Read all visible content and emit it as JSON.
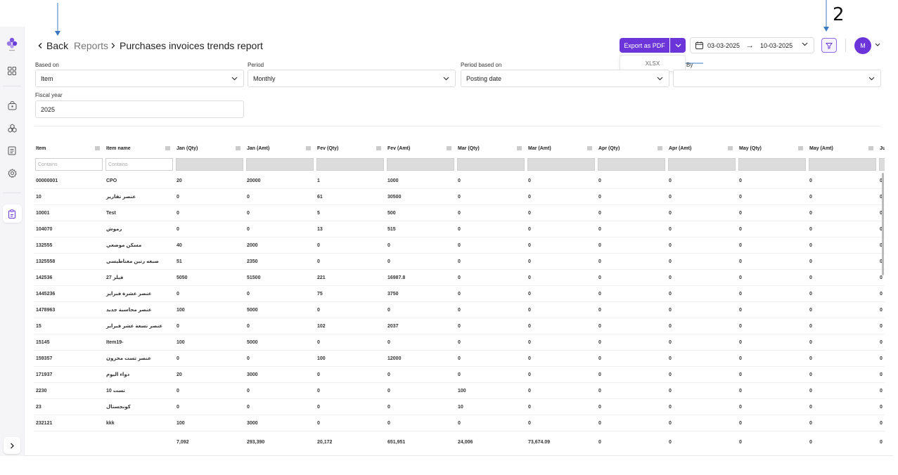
{
  "annotation": {
    "marker": "2"
  },
  "header": {
    "back_label": "Back",
    "breadcrumb_reports": "Reports",
    "title": "Purchases invoices trends report",
    "export_label": "Export as PDF",
    "export_option": "XLSX",
    "date_from": "03-03-2025",
    "date_to": "10-03-2025",
    "avatar_initial": "M"
  },
  "filters": {
    "based_on": {
      "label": "Based on",
      "value": "Item"
    },
    "period": {
      "label": "Period",
      "value": "Monthly"
    },
    "period_based_on": {
      "label": "Period based on",
      "value": "Posting date"
    },
    "group_by": {
      "label": "By",
      "value": ""
    },
    "fiscal_year": {
      "label": "Fiscal year",
      "value": "2025"
    }
  },
  "table": {
    "filter_placeholder": "Contains",
    "columns": [
      "Item",
      "Item name",
      "Jan (Qty)",
      "Jan (Amt)",
      "Fev (Qty)",
      "Fev (Amt)",
      "Mar (Qty)",
      "Mar (Amt)",
      "Apr (Qty)",
      "Apr (Amt)",
      "May (Qty)",
      "May (Amt)",
      "Ju"
    ],
    "rows": [
      [
        "00000001",
        "CPO",
        "20",
        "20000",
        "1",
        "1000",
        "0",
        "0",
        "0",
        "0",
        "0",
        "0",
        "0"
      ],
      [
        "10",
        "عنصر تقارير",
        "0",
        "0",
        "61",
        "30500",
        "0",
        "0",
        "0",
        "0",
        "0",
        "0",
        "0"
      ],
      [
        "10001",
        "Test",
        "0",
        "0",
        "5",
        "500",
        "0",
        "0",
        "0",
        "0",
        "0",
        "0",
        "0"
      ],
      [
        "104070",
        "رموش",
        "0",
        "0",
        "13",
        "515",
        "0",
        "0",
        "0",
        "0",
        "0",
        "0",
        "0"
      ],
      [
        "132555",
        "مسكن موضعي",
        "40",
        "2000",
        "0",
        "0",
        "0",
        "0",
        "0",
        "0",
        "0",
        "0",
        "0"
      ],
      [
        "1325558",
        "صبغه رتين مغناطيسي",
        "51",
        "2350",
        "0",
        "0",
        "0",
        "0",
        "0",
        "0",
        "0",
        "0",
        "0"
      ],
      [
        "142536",
        "فيلر 27",
        "5050",
        "51500",
        "221",
        "16987.8",
        "0",
        "0",
        "0",
        "0",
        "0",
        "0",
        "0"
      ],
      [
        "1445236",
        "عنصر عشرة فبراير",
        "0",
        "0",
        "75",
        "3750",
        "0",
        "0",
        "0",
        "0",
        "0",
        "0",
        "0"
      ],
      [
        "1478963",
        "عنصر محاسبة جديد",
        "100",
        "5000",
        "0",
        "0",
        "0",
        "0",
        "0",
        "0",
        "0",
        "0",
        "0"
      ],
      [
        "15",
        "عنصر تسعة عشر فبراير",
        "0",
        "0",
        "102",
        "2037",
        "0",
        "0",
        "0",
        "0",
        "0",
        "0",
        "0"
      ],
      [
        "15145",
        "Item19-",
        "100",
        "5000",
        "0",
        "0",
        "0",
        "0",
        "0",
        "0",
        "0",
        "0",
        "0"
      ],
      [
        "159357",
        "عنصر تست مخزون",
        "0",
        "0",
        "100",
        "12000",
        "0",
        "0",
        "0",
        "0",
        "0",
        "0",
        "0"
      ],
      [
        "171937",
        "دواء اليوم",
        "20",
        "3000",
        "0",
        "0",
        "0",
        "0",
        "0",
        "0",
        "0",
        "0",
        "0"
      ],
      [
        "2230",
        "تست 10",
        "0",
        "0",
        "0",
        "0",
        "100",
        "0",
        "0",
        "0",
        "0",
        "0",
        "0"
      ],
      [
        "23",
        "كونجستال",
        "0",
        "0",
        "0",
        "0",
        "10",
        "0",
        "0",
        "0",
        "0",
        "0",
        "0"
      ],
      [
        "232121",
        "kkk",
        "100",
        "3000",
        "0",
        "0",
        "0",
        "0",
        "0",
        "0",
        "0",
        "0",
        "0"
      ]
    ],
    "totals": [
      "",
      "",
      "7,092",
      "293,390",
      "20,172",
      "651,951",
      "24,006",
      "73,674.09",
      "0",
      "0",
      "0",
      "0",
      "0"
    ]
  }
}
